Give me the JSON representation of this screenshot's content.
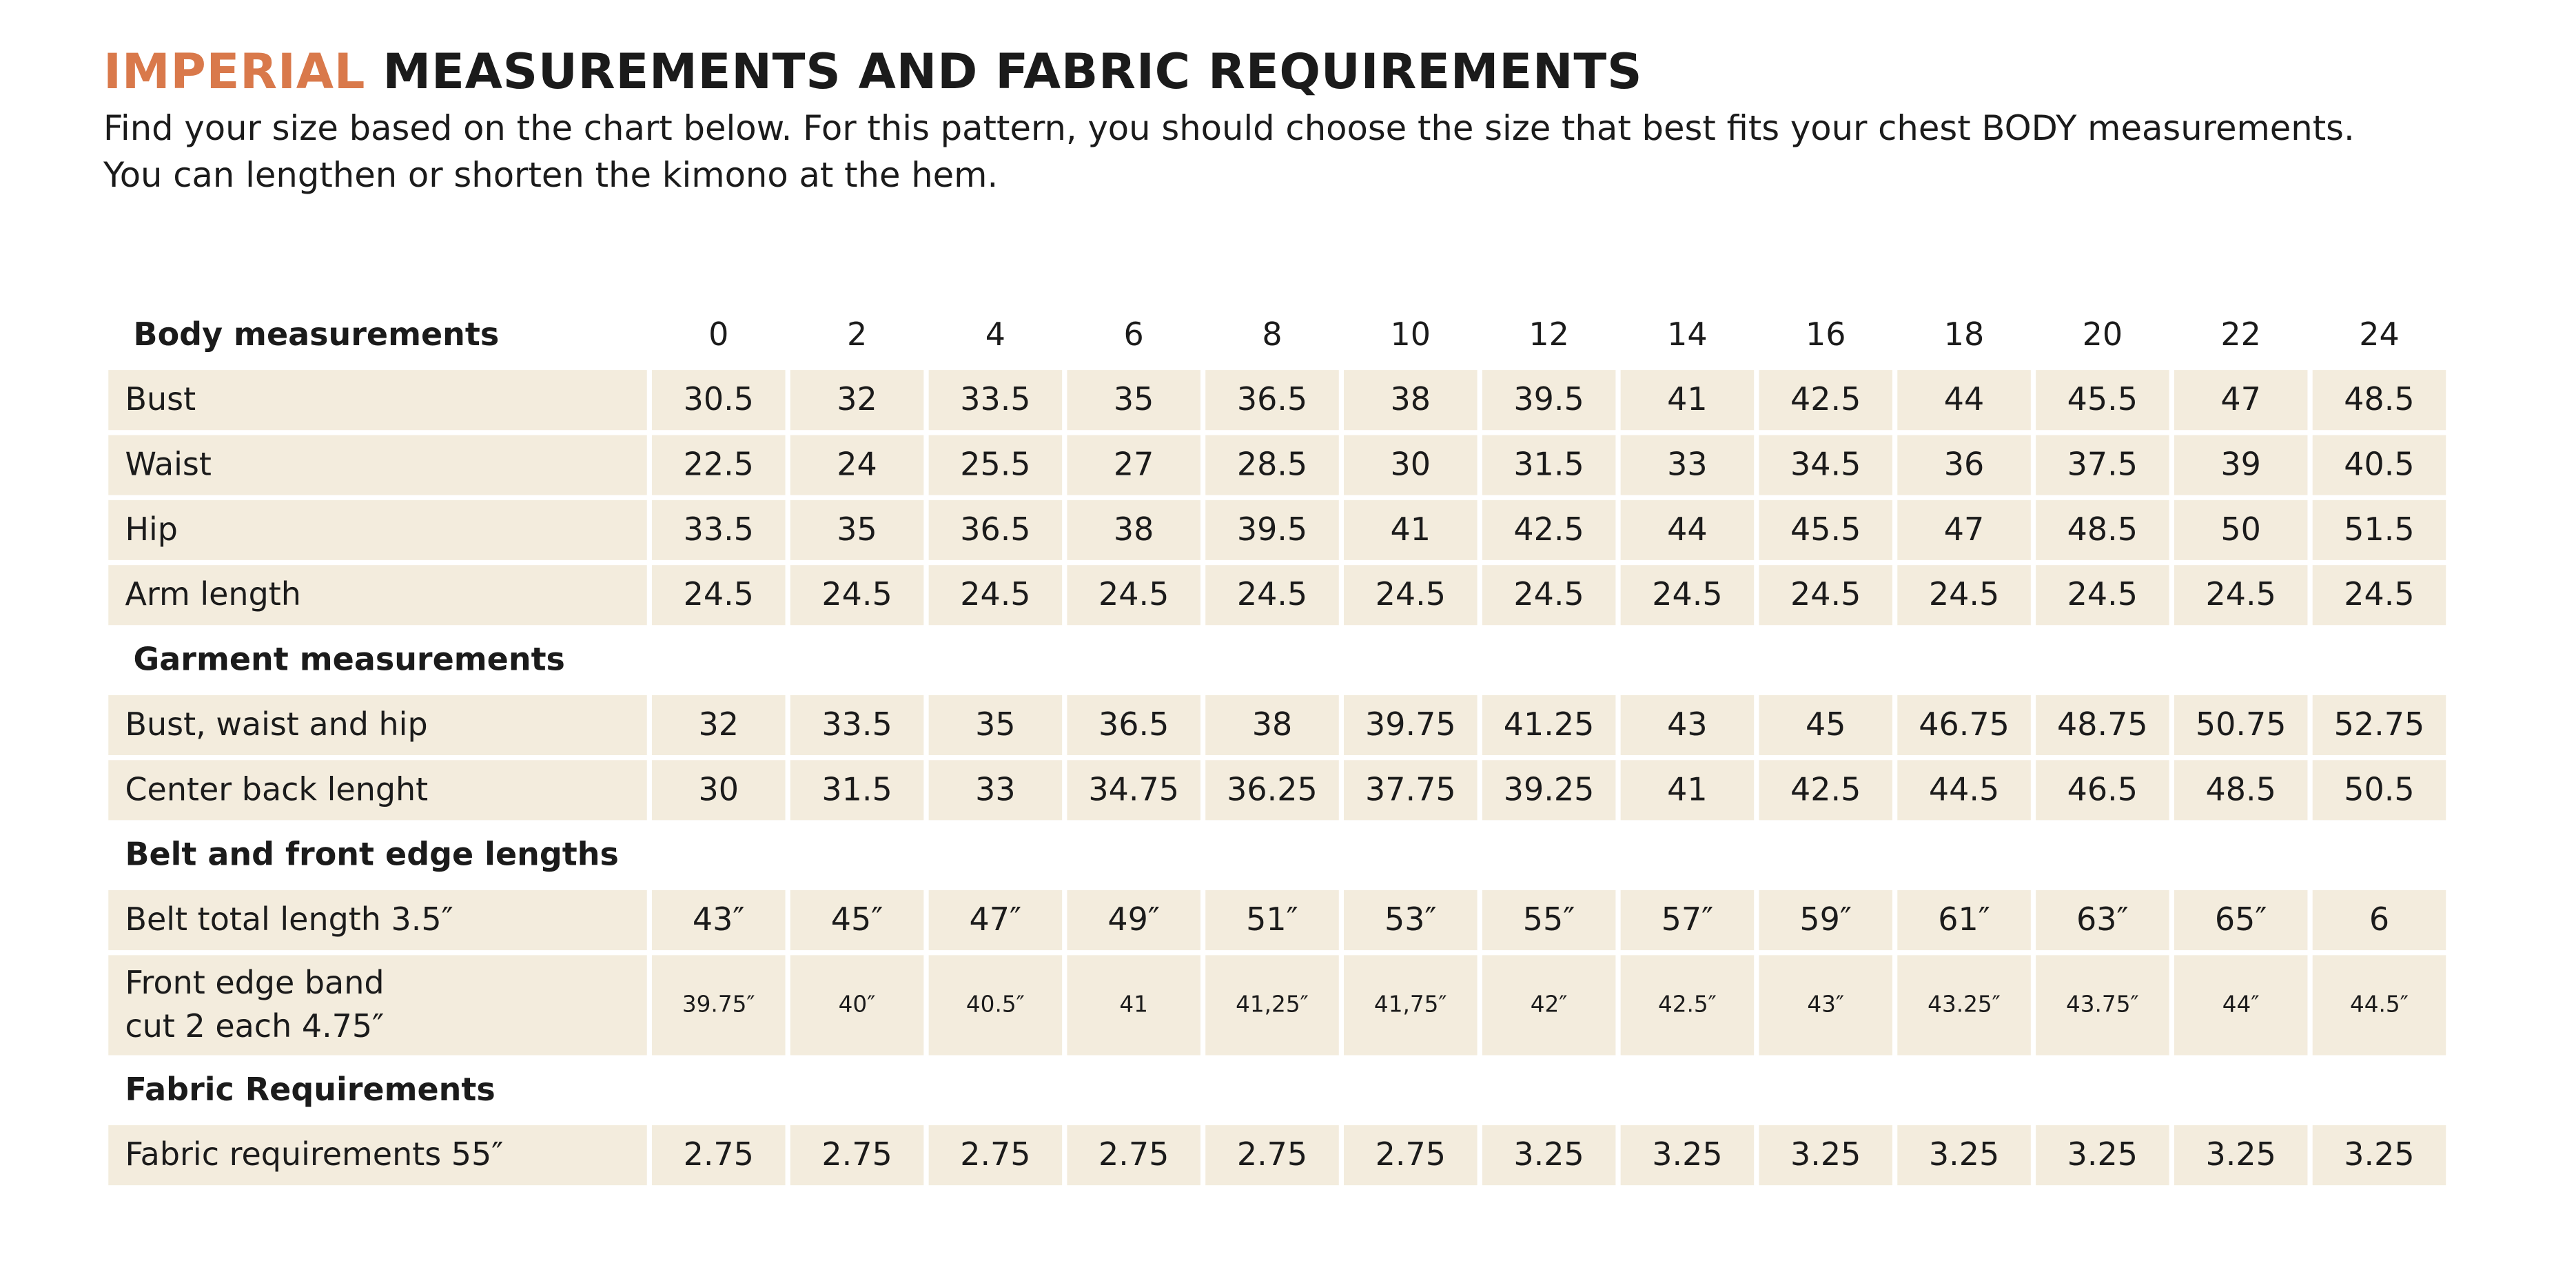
{
  "header": {
    "title_accent": "IMPERIAL",
    "title": "MEASUREMENTS AND FABRIC REQUIREMENTS",
    "intro": [
      "Find your size based on the chart below. For this pattern, you should choose the size that best fits your chest BODY measurements.",
      "You can lengthen or shorten the kimono at the hem."
    ]
  },
  "table": {
    "sizes": [
      "0",
      "2",
      "4",
      "6",
      "8",
      "10",
      "12",
      "14",
      "16",
      "18",
      "20",
      "22",
      "24"
    ],
    "sections": [
      {
        "title": "Body measurements",
        "rows": [
          {
            "label": "Bust",
            "values": [
              "30.5",
              "32",
              "33.5",
              "35",
              "36.5",
              "38",
              "39.5",
              "41",
              "42.5",
              "44",
              "45.5",
              "47",
              "48.5"
            ]
          },
          {
            "label": "Waist",
            "values": [
              "22.5",
              "24",
              "25.5",
              "27",
              "28.5",
              "30",
              "31.5",
              "33",
              "34.5",
              "36",
              "37.5",
              "39",
              "40.5"
            ]
          },
          {
            "label": "Hip",
            "values": [
              "33.5",
              "35",
              "36.5",
              "38",
              "39.5",
              "41",
              "42.5",
              "44",
              "45.5",
              "47",
              "48.5",
              "50",
              "51.5"
            ]
          },
          {
            "label": "Arm length",
            "values": [
              "24.5",
              "24.5",
              "24.5",
              "24.5",
              "24.5",
              "24.5",
              "24.5",
              "24.5",
              "24.5",
              "24.5",
              "24.5",
              "24.5",
              "24.5"
            ]
          }
        ]
      },
      {
        "title": "Garment measurements",
        "rows": [
          {
            "label": "Bust, waist and hip",
            "values": [
              "32",
              "33.5",
              "35",
              "36.5",
              "38",
              "39.75",
              "41.25",
              "43",
              "45",
              "46.75",
              "48.75",
              "50.75",
              "52.75"
            ]
          },
          {
            "label": "Center back lenght",
            "values": [
              "30",
              "31.5",
              "33",
              "34.75",
              "36.25",
              "37.75",
              "39.25",
              "41",
              "42.5",
              "44.5",
              "46.5",
              "48.5",
              "50.5"
            ]
          }
        ]
      },
      {
        "title": "Belt and front edge lengths",
        "rows": [
          {
            "label": "Belt total length 3.5″",
            "values": [
              "43″",
              "45″",
              "47″",
              "49″",
              "51″",
              "53″",
              "55″",
              "57″",
              "59″",
              "61″",
              "63″",
              "65″",
              "6"
            ]
          },
          {
            "label": "Front edge band\ncut 2 each 4.75″",
            "values": [
              "39.75″",
              "40″",
              "40.5″",
              "41",
              "41,25″",
              "41,75″",
              "42″",
              "42.5″",
              "43″",
              "43.25″",
              "43.75″",
              "44″",
              "44.5″"
            ]
          }
        ]
      },
      {
        "title": "Fabric Requirements",
        "rows": [
          {
            "label": "Fabric requirements 55″",
            "values": [
              "2.75",
              "2.75",
              "2.75",
              "2.75",
              "2.75",
              "2.75",
              "3.25",
              "3.25",
              "3.25",
              "3.25",
              "3.25",
              "3.25",
              "3.25"
            ]
          }
        ]
      }
    ]
  }
}
